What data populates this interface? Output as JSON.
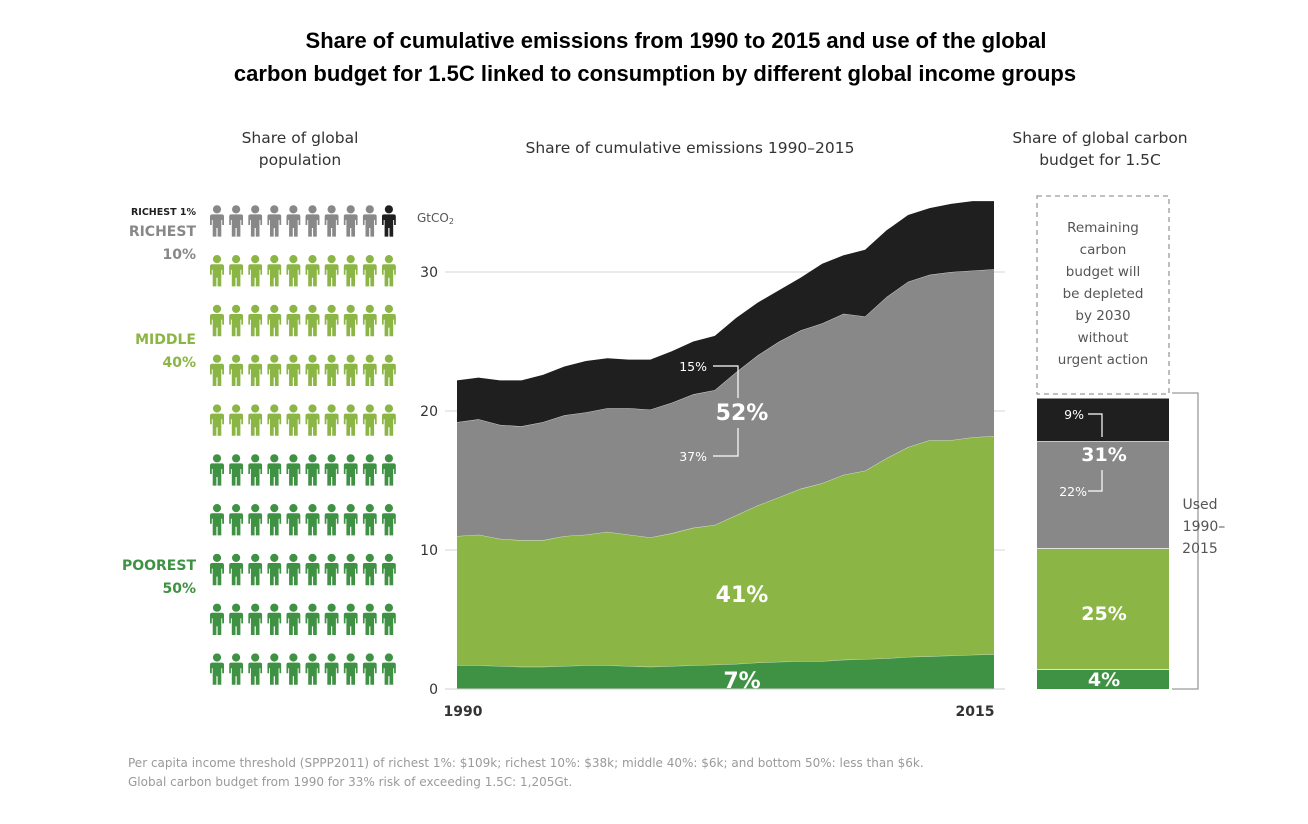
{
  "title": {
    "line1": "Share of cumulative emissions from 1990 to 2015 and use of the global",
    "line2": "carbon budget for 1.5C linked to consumption by different global income groups"
  },
  "panels": {
    "population": {
      "header_line1": "Share of global",
      "header_line2": "population",
      "groups": [
        {
          "label_lines": [
            "RICHEST 1%"
          ],
          "color": "#1f1f1f",
          "icons": 1
        },
        {
          "label_lines": [
            "RICHEST",
            "10%"
          ],
          "color": "#888888",
          "icons": 9
        },
        {
          "label_lines": [
            "MIDDLE",
            "40%"
          ],
          "color": "#8bb545",
          "icons": 40
        },
        {
          "label_lines": [
            "POOREST",
            "50%"
          ],
          "color": "#3f9244",
          "icons": 50
        }
      ]
    },
    "emissions": {
      "header": "Share of cumulative emissions 1990–2015",
      "unit": "GtCO",
      "unit_sub": "2",
      "annotations": {
        "richest_1_pct": "15%",
        "richest_10_pct": "52%",
        "richest_10_excl_1_pct": "37%",
        "middle_40_pct": "41%",
        "poorest_50_pct": "7%"
      }
    },
    "budget": {
      "header_line1": "Share of global carbon",
      "header_line2": "budget for 1.5C",
      "remaining_lines": [
        "Remaining",
        "carbon",
        "budget will",
        "be depleted",
        "by 2030",
        "without",
        "urgent action"
      ],
      "used_lines": [
        "Used",
        "1990–",
        "2015"
      ],
      "segments": [
        {
          "name": "Richest 1%",
          "label": "9%",
          "value": 3.1,
          "color": "#1f1f1f"
        },
        {
          "name": "Richest 10% (excl. 1%)",
          "label": "22%",
          "value": 7.7,
          "color": "#888888"
        },
        {
          "name": "Middle 40%",
          "label": "25%",
          "value": 8.7,
          "color": "#8bb545"
        },
        {
          "name": "Poorest 50%",
          "label": "4%",
          "value": 1.4,
          "color": "#3f9244"
        }
      ],
      "richest_10_total_label": "31%"
    }
  },
  "chart_data": {
    "type": "area",
    "title": "Share of cumulative emissions 1990–2015",
    "ylabel": "GtCO2",
    "ylim": [
      0,
      35
    ],
    "yticks": [
      0,
      10,
      20,
      30
    ],
    "xtick_labels": [
      "1990",
      "2015"
    ],
    "grid": true,
    "x": [
      1990,
      1991,
      1992,
      1993,
      1994,
      1995,
      1996,
      1997,
      1998,
      1999,
      2000,
      2001,
      2002,
      2003,
      2004,
      2005,
      2006,
      2007,
      2008,
      2009,
      2010,
      2011,
      2012,
      2013,
      2014,
      2015
    ],
    "stacking": "cumulative_top_of_each_group",
    "series": [
      {
        "name": "Poorest 50%",
        "label": "7%",
        "color": "#3f9244",
        "values": [
          1.7,
          1.7,
          1.65,
          1.6,
          1.6,
          1.65,
          1.7,
          1.7,
          1.65,
          1.6,
          1.65,
          1.7,
          1.75,
          1.8,
          1.9,
          1.95,
          2.0,
          2.0,
          2.1,
          2.15,
          2.2,
          2.3,
          2.35,
          2.4,
          2.45,
          2.5
        ]
      },
      {
        "name": "Middle 40%",
        "label": "41%",
        "color": "#8bb545",
        "values": [
          11.0,
          11.1,
          10.8,
          10.7,
          10.7,
          11.0,
          11.1,
          11.3,
          11.1,
          10.9,
          11.2,
          11.6,
          11.8,
          12.5,
          13.2,
          13.8,
          14.4,
          14.8,
          15.4,
          15.7,
          16.6,
          17.4,
          17.9,
          17.9,
          18.1,
          18.2
        ]
      },
      {
        "name": "Richest 10% (excl. 1%)",
        "label": "37%",
        "color": "#888888",
        "values": [
          19.2,
          19.4,
          19.0,
          18.9,
          19.2,
          19.7,
          19.9,
          20.2,
          20.2,
          20.1,
          20.6,
          21.2,
          21.5,
          22.8,
          24.0,
          25.0,
          25.8,
          26.3,
          27.0,
          26.8,
          28.2,
          29.3,
          29.8,
          30.0,
          30.1,
          30.2
        ]
      },
      {
        "name": "Richest 1%",
        "label": "15%",
        "color": "#1f1f1f",
        "values": [
          22.2,
          22.4,
          22.2,
          22.2,
          22.6,
          23.2,
          23.6,
          23.8,
          23.7,
          23.7,
          24.3,
          25.0,
          25.4,
          26.7,
          27.8,
          28.7,
          29.6,
          30.6,
          31.2,
          31.6,
          33.0,
          34.1,
          34.6,
          34.9,
          35.1,
          35.1
        ]
      }
    ]
  },
  "footnote": {
    "line1": "Per capita income threshold (SPPP2011) of richest 1%: $109k; richest 10%: $38k; middle 40%: $6k; and bottom 50%: less than $6k.",
    "line2": "Global carbon budget from 1990 for 33% risk of exceeding 1.5C: 1,205Gt."
  }
}
